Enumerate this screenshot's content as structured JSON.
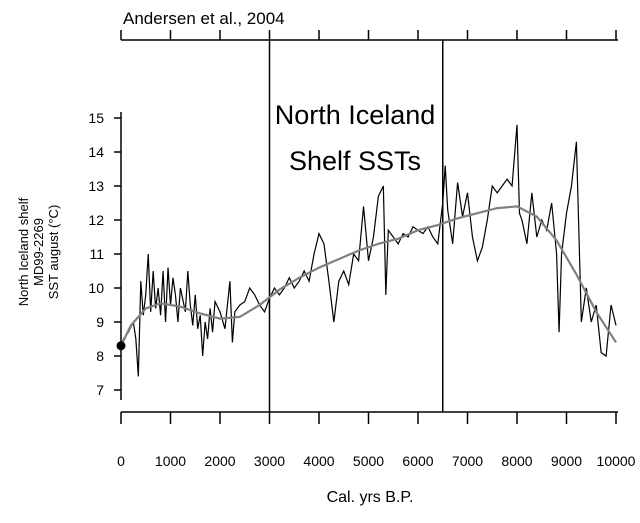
{
  "chart_data": {
    "type": "line",
    "title": "Andersen et al., 2004",
    "annotation": [
      "North Iceland",
      "Shelf SSTs"
    ],
    "ylabel": [
      "North Iceland shelf",
      "MD99-2269",
      "SST august (°C)"
    ],
    "xlabel": "Cal. yrs B.P.",
    "xlim": [
      0,
      10000
    ],
    "ylim": [
      7,
      15
    ],
    "xticks": [
      0,
      1000,
      2000,
      3000,
      4000,
      5000,
      6000,
      7000,
      8000,
      9000,
      10000
    ],
    "yticks": [
      7,
      8,
      9,
      10,
      11,
      12,
      13,
      14,
      15
    ],
    "vlines": [
      3000,
      6500
    ],
    "start_point": {
      "x": 0,
      "y": 8.3
    },
    "series": [
      {
        "color": "#000000",
        "x": [
          0,
          50,
          150,
          250,
          300,
          350,
          400,
          450,
          500,
          550,
          600,
          650,
          700,
          750,
          800,
          850,
          900,
          950,
          1000,
          1050,
          1100,
          1150,
          1200,
          1300,
          1350,
          1400,
          1450,
          1500,
          1550,
          1600,
          1650,
          1700,
          1750,
          1800,
          1850,
          1900,
          2000,
          2100,
          2200,
          2250,
          2300,
          2400,
          2500,
          2600,
          2700,
          2800,
          2900,
          3000,
          3100,
          3200,
          3300,
          3400,
          3500,
          3600,
          3700,
          3800,
          3900,
          4000,
          4100,
          4200,
          4300,
          4400,
          4500,
          4600,
          4700,
          4800,
          4900,
          5000,
          5100,
          5200,
          5300,
          5350,
          5400,
          5500,
          5600,
          5700,
          5800,
          5900,
          6000,
          6100,
          6200,
          6300,
          6400,
          6500,
          6550,
          6600,
          6700,
          6800,
          6900,
          7000,
          7100,
          7200,
          7300,
          7400,
          7500,
          7600,
          7700,
          7800,
          7900,
          8000,
          8050,
          8100,
          8200,
          8300,
          8400,
          8500,
          8600,
          8700,
          8800,
          8850,
          8900,
          9000,
          9100,
          9200,
          9300,
          9400,
          9500,
          9600,
          9700,
          9800,
          9900,
          10000
        ],
        "values": [
          8.3,
          8.5,
          8.7,
          9.0,
          8.5,
          7.4,
          10.2,
          9.2,
          9.8,
          11.0,
          9.3,
          10.5,
          9.4,
          10.0,
          9.2,
          10.5,
          9.0,
          10.6,
          9.5,
          10.3,
          9.8,
          9.0,
          10.0,
          9.3,
          10.5,
          9.5,
          8.9,
          9.8,
          8.8,
          9.2,
          8.0,
          9.0,
          8.5,
          9.4,
          8.7,
          9.6,
          9.3,
          8.8,
          10.2,
          8.4,
          9.3,
          9.5,
          9.6,
          10.0,
          9.8,
          9.5,
          9.3,
          9.7,
          10.0,
          9.8,
          10.0,
          10.3,
          10.0,
          10.2,
          10.5,
          10.2,
          11.0,
          11.6,
          11.3,
          10.2,
          9.0,
          10.2,
          10.5,
          10.1,
          11.0,
          10.8,
          12.4,
          10.8,
          11.5,
          12.7,
          13.0,
          9.8,
          11.7,
          11.5,
          11.3,
          11.6,
          11.5,
          11.8,
          11.7,
          11.6,
          11.8,
          11.5,
          11.3,
          12.5,
          13.6,
          12.3,
          11.3,
          13.1,
          12.1,
          12.8,
          11.5,
          10.8,
          11.2,
          12.0,
          13.0,
          12.8,
          13.0,
          13.2,
          13.0,
          14.8,
          12.2,
          12.0,
          11.3,
          12.8,
          11.5,
          12.0,
          11.7,
          12.5,
          11.0,
          8.7,
          11.0,
          12.2,
          13.0,
          14.3,
          9.0,
          10.0,
          9.0,
          9.5,
          8.1,
          8.0,
          9.5,
          8.9
        ]
      },
      {
        "color": "#808080",
        "x": [
          0,
          200,
          500,
          800,
          1200,
          1600,
          2000,
          2400,
          2800,
          3200,
          3600,
          4000,
          4400,
          4800,
          5200,
          5600,
          6000,
          6400,
          6800,
          7200,
          7600,
          8000,
          8400,
          8800,
          9200,
          9600,
          10000
        ],
        "values": [
          8.3,
          8.9,
          9.4,
          9.55,
          9.45,
          9.25,
          9.1,
          9.15,
          9.5,
          9.95,
          10.3,
          10.6,
          10.85,
          11.1,
          11.3,
          11.45,
          11.7,
          11.85,
          12.05,
          12.2,
          12.35,
          12.4,
          12.1,
          11.4,
          10.4,
          9.3,
          8.4
        ]
      }
    ]
  }
}
